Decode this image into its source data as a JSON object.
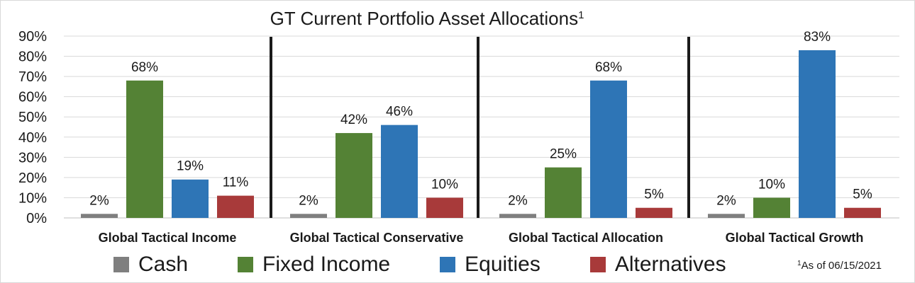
{
  "chart_data": {
    "type": "bar",
    "title": "GT Current Portfolio Asset Allocations",
    "title_superscript": "1",
    "categories": [
      "Global Tactical Income",
      "Global Tactical Conservative",
      "Global Tactical Allocation",
      "Global Tactical Growth"
    ],
    "series": [
      {
        "name": "Cash",
        "values": [
          2,
          2,
          2,
          2
        ],
        "color": "#7f7f7f"
      },
      {
        "name": "Fixed Income",
        "values": [
          68,
          42,
          25,
          10
        ],
        "color": "#548235"
      },
      {
        "name": "Equities",
        "values": [
          19,
          46,
          68,
          83
        ],
        "color": "#2e75b6"
      },
      {
        "name": "Alternatives",
        "values": [
          11,
          10,
          5,
          5
        ],
        "color": "#a83a3a"
      }
    ],
    "value_labels": [
      [
        "2%",
        "68%",
        "19%",
        "11%"
      ],
      [
        "2%",
        "42%",
        "46%",
        "10%"
      ],
      [
        "2%",
        "25%",
        "68%",
        "5%"
      ],
      [
        "2%",
        "10%",
        "83%",
        "5%"
      ]
    ],
    "y_ticks": [
      "0%",
      "10%",
      "20%",
      "30%",
      "40%",
      "50%",
      "60%",
      "70%",
      "80%",
      "90%"
    ],
    "ylim": [
      0,
      90
    ],
    "unit": "%",
    "grid": true,
    "legend_position": "bottom",
    "footnote_marker": "1",
    "footnote": "As of 06/15/2021"
  }
}
